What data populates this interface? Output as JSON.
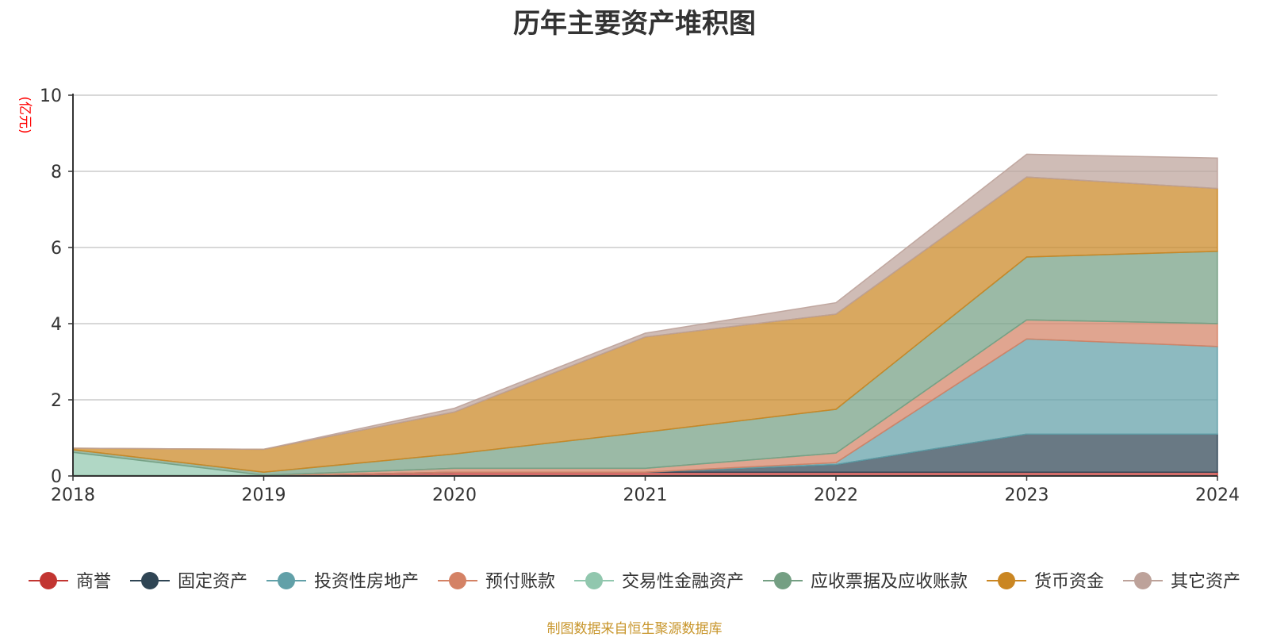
{
  "chart_data": {
    "type": "area",
    "stacked": true,
    "title": "历年主要资产堆积图",
    "ylabel": "(亿元)",
    "xlabel": "",
    "source": "制图数据来自恒生聚源数据库",
    "categories": [
      "2018",
      "2019",
      "2020",
      "2021",
      "2022",
      "2023",
      "2024"
    ],
    "ylim": [
      0,
      10
    ],
    "yticks": [
      0,
      2,
      4,
      6,
      8,
      10
    ],
    "grid": true,
    "legend_position": "bottom",
    "series": [
      {
        "name": "商誉",
        "color": "#c23531",
        "values": [
          0,
          0,
          0.1,
          0.1,
          0.1,
          0.1,
          0.1
        ]
      },
      {
        "name": "固定资产",
        "color": "#2f4554",
        "values": [
          0,
          0,
          0,
          0,
          0.2,
          1.0,
          1.0
        ]
      },
      {
        "name": "投资性房地产",
        "color": "#61a0a8",
        "values": [
          0,
          0,
          0,
          0,
          0.05,
          2.5,
          2.3
        ]
      },
      {
        "name": "预付账款",
        "color": "#d48265",
        "values": [
          0.02,
          0.02,
          0.1,
          0.1,
          0.25,
          0.5,
          0.6
        ]
      },
      {
        "name": "交易性金融资产",
        "color": "#91c7ae",
        "values": [
          0.6,
          0,
          0,
          0,
          0,
          0,
          0
        ]
      },
      {
        "name": "应收票据及应收账款",
        "color": "#749f83",
        "values": [
          0.07,
          0.08,
          0.38,
          0.95,
          1.15,
          1.65,
          1.9
        ]
      },
      {
        "name": "货币资金",
        "color": "#ca8622",
        "values": [
          0.04,
          0.6,
          1.1,
          2.5,
          2.5,
          2.1,
          1.65
        ]
      },
      {
        "name": "其它资产",
        "color": "#bda29a",
        "values": [
          0,
          0,
          0.1,
          0.1,
          0.3,
          0.6,
          0.8
        ]
      }
    ]
  }
}
